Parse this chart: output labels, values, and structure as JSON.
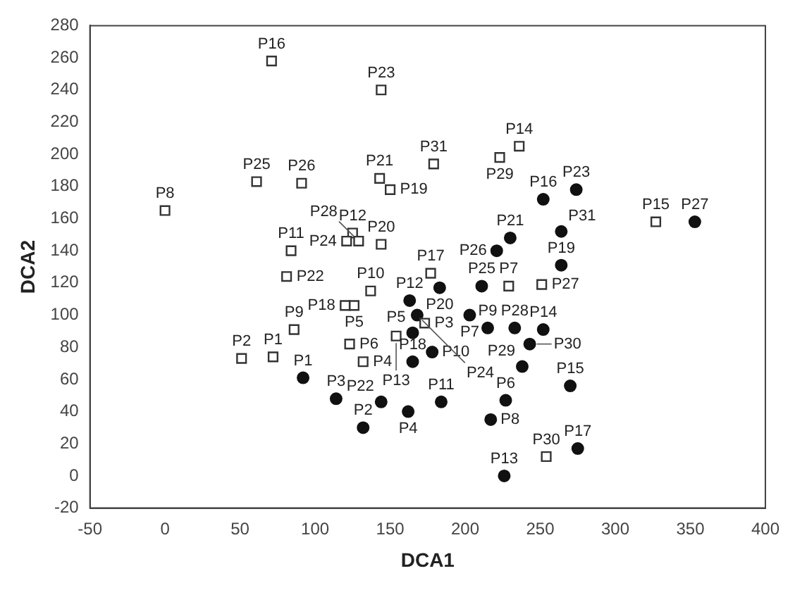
{
  "chart_data": {
    "type": "scatter",
    "xlabel": "DCA1",
    "ylabel": "DCA2",
    "xlim": [
      -50,
      400
    ],
    "xticks": [
      -50,
      0,
      50,
      100,
      150,
      200,
      250,
      300,
      350,
      400
    ],
    "ylim": [
      -20,
      280
    ],
    "yticks": [
      -20,
      0,
      20,
      40,
      60,
      80,
      100,
      120,
      140,
      160,
      180,
      200,
      220,
      240,
      260,
      280
    ],
    "grid": false,
    "legend": false,
    "series": [
      {
        "color": "#333333",
        "marker": "square",
        "x": [
          72,
          51,
          173,
          132,
          126,
          123,
          229,
          0,
          86,
          137,
          84,
          125,
          154,
          236,
          327,
          71,
          177,
          120,
          150,
          144,
          143,
          81,
          144,
          121,
          61,
          91,
          251,
          129,
          223,
          254,
          179
        ],
        "values": [
          74,
          73,
          95,
          71,
          106,
          82,
          118,
          165,
          91,
          115,
          140,
          151,
          87,
          205,
          158,
          258,
          126,
          106,
          178,
          144,
          185,
          124,
          240,
          146,
          183,
          182,
          119,
          146,
          198,
          12,
          194
        ]
      },
      {
        "color": "#111111",
        "marker": "circle",
        "x": [
          92,
          132,
          114,
          162,
          165,
          227,
          203,
          217,
          215,
          178,
          184,
          163,
          226,
          252,
          270,
          252,
          275,
          165,
          264,
          183,
          230,
          144,
          274,
          168,
          211,
          221,
          353,
          233,
          238,
          243,
          264
        ],
        "values": [
          61,
          30,
          48,
          40,
          89,
          47,
          100,
          35,
          92,
          77,
          46,
          109,
          0,
          91,
          56,
          172,
          17,
          71,
          131,
          117,
          148,
          46,
          178,
          100,
          118,
          140,
          158,
          92,
          68,
          82,
          152
        ]
      }
    ],
    "annotations": [
      {
        "text": "P1",
        "x": 72,
        "y": 74
      },
      {
        "text": "P2",
        "x": 51,
        "y": 73
      },
      {
        "text": "P3",
        "x": 173,
        "y": 95
      },
      {
        "text": "P4",
        "x": 132,
        "y": 71
      },
      {
        "text": "P5",
        "x": 126,
        "y": 106
      },
      {
        "text": "P6",
        "x": 123,
        "y": 82
      },
      {
        "text": "P7",
        "x": 229,
        "y": 118
      },
      {
        "text": "P8",
        "x": 0,
        "y": 165
      },
      {
        "text": "P9",
        "x": 86,
        "y": 91
      },
      {
        "text": "P10",
        "x": 137,
        "y": 115
      },
      {
        "text": "P11",
        "x": 84,
        "y": 140
      },
      {
        "text": "P12",
        "x": 125,
        "y": 151
      },
      {
        "text": "P13",
        "x": 154,
        "y": 87
      },
      {
        "text": "P14",
        "x": 236,
        "y": 205
      },
      {
        "text": "P15",
        "x": 327,
        "y": 158
      },
      {
        "text": "P16",
        "x": 71,
        "y": 258
      },
      {
        "text": "P17",
        "x": 177,
        "y": 126
      },
      {
        "text": "P18",
        "x": 120,
        "y": 106
      },
      {
        "text": "P19",
        "x": 150,
        "y": 178
      },
      {
        "text": "P20",
        "x": 144,
        "y": 144
      },
      {
        "text": "P21",
        "x": 143,
        "y": 185
      },
      {
        "text": "P22",
        "x": 81,
        "y": 124
      },
      {
        "text": "P23",
        "x": 144,
        "y": 240
      },
      {
        "text": "P24",
        "x": 121,
        "y": 146
      },
      {
        "text": "P25",
        "x": 61,
        "y": 183
      },
      {
        "text": "P26",
        "x": 91,
        "y": 182
      },
      {
        "text": "P27",
        "x": 251,
        "y": 119
      },
      {
        "text": "P28",
        "x": 129,
        "y": 146
      },
      {
        "text": "P29",
        "x": 223,
        "y": 198
      },
      {
        "text": "P30",
        "x": 254,
        "y": 12
      },
      {
        "text": "P31",
        "x": 179,
        "y": 194
      },
      {
        "text": "P1",
        "x": 92,
        "y": 61
      },
      {
        "text": "P2",
        "x": 132,
        "y": 30
      },
      {
        "text": "P3",
        "x": 114,
        "y": 48
      },
      {
        "text": "P4",
        "x": 162,
        "y": 40
      },
      {
        "text": "P5",
        "x": 165,
        "y": 89
      },
      {
        "text": "P6",
        "x": 227,
        "y": 47
      },
      {
        "text": "P7",
        "x": 203,
        "y": 100
      },
      {
        "text": "P8",
        "x": 217,
        "y": 35
      },
      {
        "text": "P9",
        "x": 215,
        "y": 92
      },
      {
        "text": "P10",
        "x": 178,
        "y": 77
      },
      {
        "text": "P11",
        "x": 184,
        "y": 46
      },
      {
        "text": "P12",
        "x": 163,
        "y": 109
      },
      {
        "text": "P13",
        "x": 226,
        "y": 0
      },
      {
        "text": "P14",
        "x": 252,
        "y": 91
      },
      {
        "text": "P15",
        "x": 270,
        "y": 56
      },
      {
        "text": "P16",
        "x": 252,
        "y": 172
      },
      {
        "text": "P17",
        "x": 275,
        "y": 17
      },
      {
        "text": "P18",
        "x": 165,
        "y": 71
      },
      {
        "text": "P19",
        "x": 264,
        "y": 131
      },
      {
        "text": "P20",
        "x": 183,
        "y": 117
      },
      {
        "text": "P21",
        "x": 230,
        "y": 148
      },
      {
        "text": "P22",
        "x": 144,
        "y": 46
      },
      {
        "text": "P23",
        "x": 274,
        "y": 178
      },
      {
        "text": "P24",
        "x": 168,
        "y": 100
      },
      {
        "text": "P25",
        "x": 211,
        "y": 118
      },
      {
        "text": "P26",
        "x": 221,
        "y": 140
      },
      {
        "text": "P27",
        "x": 353,
        "y": 158
      },
      {
        "text": "P28",
        "x": 233,
        "y": 92
      },
      {
        "text": "P29",
        "x": 238,
        "y": 68
      },
      {
        "text": "P30",
        "x": 243,
        "y": 82
      },
      {
        "text": "P31",
        "x": 264,
        "y": 152
      }
    ]
  }
}
